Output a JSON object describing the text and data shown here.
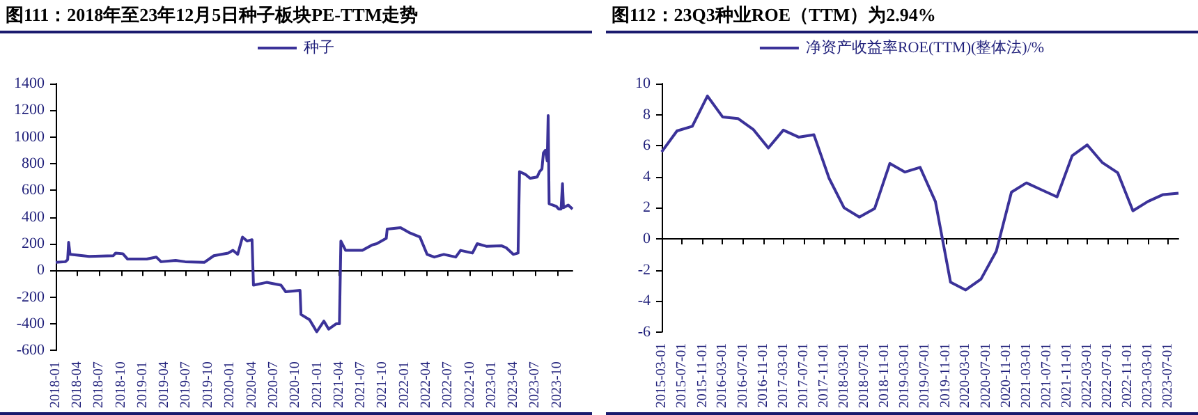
{
  "chart_data": [
    {
      "type": "line",
      "title": "图111：2018年至23年12月5日种子板块PE-TTM走势",
      "legend": "top",
      "ylim": [
        -600,
        1400
      ],
      "yticks": [
        -600,
        -400,
        -200,
        0,
        200,
        400,
        600,
        800,
        1000,
        1200,
        1400
      ],
      "xlim": [
        "2018-01-01",
        "2023-12-05"
      ],
      "xticks": [
        "2018-01",
        "2018-04",
        "2018-07",
        "2018-10",
        "2019-01",
        "2019-04",
        "2019-07",
        "2019-10",
        "2020-01",
        "2020-04",
        "2020-07",
        "2020-10",
        "2021-01",
        "2021-04",
        "2021-07",
        "2021-10",
        "2022-01",
        "2022-04",
        "2022-07",
        "2022-10",
        "2023-01",
        "2023-04",
        "2023-07",
        "2023-10"
      ],
      "series": [
        {
          "name": "种子",
          "color": "#3b3299",
          "x": [
            "2018-01-01",
            "2018-02-10",
            "2018-02-20",
            "2018-02-24",
            "2018-03-02",
            "2018-05-21",
            "2018-08-30",
            "2018-09-09",
            "2018-10-09",
            "2018-10-29",
            "2019-01-17",
            "2019-02-26",
            "2019-03-18",
            "2019-05-18",
            "2019-06-27",
            "2019-09-15",
            "2019-10-25",
            "2019-12-24",
            "2020-01-13",
            "2020-02-02",
            "2020-02-22",
            "2020-03-13",
            "2020-04-02",
            "2020-04-08",
            "2020-06-02",
            "2020-08-01",
            "2020-08-21",
            "2020-10-20",
            "2020-10-24",
            "2020-11-29",
            "2020-12-29",
            "2021-01-28",
            "2021-02-17",
            "2021-03-20",
            "2021-04-03",
            "2021-04-09",
            "2021-04-29",
            "2021-07-08",
            "2021-08-17",
            "2021-09-06",
            "2021-10-16",
            "2021-10-20",
            "2021-12-15",
            "2022-01-24",
            "2022-03-06",
            "2022-04-05",
            "2022-05-05",
            "2022-06-14",
            "2022-08-03",
            "2022-08-23",
            "2022-10-12",
            "2022-11-01",
            "2022-12-11",
            "2023-02-10",
            "2023-03-02",
            "2023-04-01",
            "2023-04-21",
            "2023-04-27",
            "2023-05-21",
            "2023-06-10",
            "2023-07-10",
            "2023-07-20",
            "2023-07-30",
            "2023-08-05",
            "2023-08-13",
            "2023-08-21",
            "2023-08-25",
            "2023-08-29",
            "2023-09-28",
            "2023-10-08",
            "2023-10-18",
            "2023-10-24",
            "2023-10-28",
            "2023-11-17",
            "2023-12-05"
          ],
          "values": [
            60,
            65,
            80,
            210,
            120,
            105,
            110,
            130,
            125,
            85,
            85,
            100,
            65,
            75,
            65,
            60,
            110,
            130,
            150,
            120,
            250,
            220,
            230,
            -110,
            -90,
            -110,
            -160,
            -150,
            -330,
            -370,
            -460,
            -380,
            -440,
            -400,
            -400,
            220,
            150,
            150,
            190,
            200,
            240,
            310,
            320,
            280,
            250,
            120,
            100,
            120,
            100,
            150,
            130,
            200,
            180,
            185,
            170,
            120,
            130,
            740,
            720,
            690,
            700,
            740,
            760,
            880,
            900,
            820,
            1160,
            500,
            480,
            460,
            460,
            650,
            470,
            490,
            460
          ]
        }
      ]
    },
    {
      "type": "line",
      "title": "图112：23Q3种业ROE（TTM）为2.94%",
      "legend": "top",
      "ylim": [
        -6,
        10
      ],
      "yticks": [
        -6,
        -4,
        -2,
        0,
        2,
        4,
        6,
        8,
        10
      ],
      "xlim": [
        "2015-03-01",
        "2023-09-01"
      ],
      "xticks": [
        "2015-03-01",
        "2015-07-01",
        "2015-11-01",
        "2016-03-01",
        "2016-07-01",
        "2016-11-01",
        "2017-03-01",
        "2017-07-01",
        "2017-11-01",
        "2018-03-01",
        "2018-07-01",
        "2018-11-01",
        "2019-03-01",
        "2019-07-01",
        "2019-11-01",
        "2020-03-01",
        "2020-07-01",
        "2020-11-01",
        "2021-03-01",
        "2021-07-01",
        "2021-11-01",
        "2022-03-01",
        "2022-07-01",
        "2022-11-01",
        "2023-03-01",
        "2023-07-01"
      ],
      "series": [
        {
          "name": "净资产收益率ROE(TTM)(整体法)/%",
          "color": "#3b3299",
          "x": [
            "2015-03-01",
            "2015-06-01",
            "2015-09-01",
            "2015-12-01",
            "2016-03-01",
            "2016-06-01",
            "2016-09-01",
            "2016-12-01",
            "2017-03-01",
            "2017-06-01",
            "2017-09-01",
            "2017-12-01",
            "2018-03-01",
            "2018-06-01",
            "2018-09-01",
            "2018-12-01",
            "2019-03-01",
            "2019-06-01",
            "2019-09-01",
            "2019-12-01",
            "2020-03-01",
            "2020-06-01",
            "2020-09-01",
            "2020-12-01",
            "2021-03-01",
            "2021-06-01",
            "2021-09-01",
            "2021-12-01",
            "2022-03-01",
            "2022-06-01",
            "2022-09-01",
            "2022-12-01",
            "2023-03-01",
            "2023-06-01",
            "2023-09-01"
          ],
          "values": [
            5.6,
            6.95,
            7.25,
            9.2,
            7.85,
            7.75,
            7.05,
            5.85,
            7.0,
            6.55,
            6.7,
            3.9,
            2.0,
            1.4,
            1.95,
            4.85,
            4.3,
            4.6,
            2.4,
            -2.8,
            -3.3,
            -2.6,
            -0.8,
            3.0,
            3.6,
            3.15,
            2.7,
            5.35,
            6.05,
            4.9,
            4.25,
            1.8,
            2.4,
            2.85,
            2.94
          ]
        }
      ]
    }
  ]
}
